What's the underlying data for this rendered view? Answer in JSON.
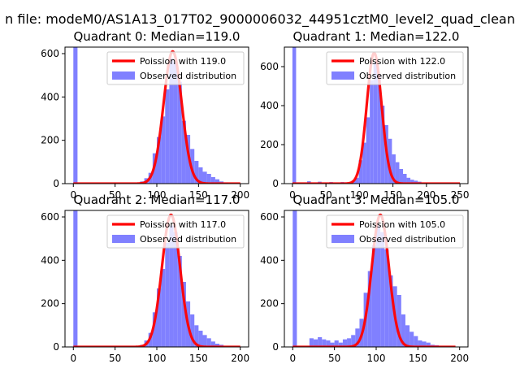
{
  "suptitle": "n file: modeM0/AS1A13_017T02_9000006032_44951cztM0_level2_quad_clean",
  "colors": {
    "fit_line": "#ff0000",
    "histogram": "#8080ff",
    "axes": "#000000",
    "background": "#ffffff"
  },
  "chart_data": [
    {
      "type": "bar",
      "title": "Quadrant 0: Median=119.0",
      "xlabel": "",
      "ylabel": "",
      "xlim": [
        -10,
        210
      ],
      "ylim": [
        0,
        630
      ],
      "xticks": [
        0,
        50,
        100,
        150,
        200
      ],
      "yticks": [
        0,
        200,
        400,
        600
      ],
      "grid": false,
      "legend_position": "top-right",
      "bin_width": 5,
      "series": [
        {
          "name": "Poission with 119.0",
          "kind": "line",
          "lambda": 119.0,
          "x_range": [
            0,
            200
          ],
          "peak": 610
        },
        {
          "name": "Observed distribution",
          "kind": "histogram",
          "bins": [
            {
              "x": 0,
              "count": 640
            },
            {
              "x": 80,
              "count": 10
            },
            {
              "x": 85,
              "count": 25
            },
            {
              "x": 90,
              "count": 50
            },
            {
              "x": 95,
              "count": 140
            },
            {
              "x": 100,
              "count": 215
            },
            {
              "x": 105,
              "count": 310
            },
            {
              "x": 110,
              "count": 435
            },
            {
              "x": 115,
              "count": 580
            },
            {
              "x": 120,
              "count": 560
            },
            {
              "x": 125,
              "count": 470
            },
            {
              "x": 130,
              "count": 290
            },
            {
              "x": 135,
              "count": 225
            },
            {
              "x": 140,
              "count": 160
            },
            {
              "x": 145,
              "count": 105
            },
            {
              "x": 150,
              "count": 75
            },
            {
              "x": 155,
              "count": 55
            },
            {
              "x": 160,
              "count": 45
            },
            {
              "x": 165,
              "count": 30
            },
            {
              "x": 170,
              "count": 20
            },
            {
              "x": 175,
              "count": 10
            },
            {
              "x": 180,
              "count": 5
            }
          ]
        }
      ]
    },
    {
      "type": "bar",
      "title": "Quadrant 1: Median=122.0",
      "xlabel": "",
      "ylabel": "",
      "xlim": [
        -12,
        262
      ],
      "ylim": [
        0,
        700
      ],
      "xticks": [
        0,
        50,
        100,
        150,
        200,
        250
      ],
      "yticks": [
        0,
        200,
        400,
        600
      ],
      "grid": false,
      "legend_position": "top-right",
      "bin_width": 5.5,
      "series": [
        {
          "name": "Poission with 122.0",
          "kind": "line",
          "lambda": 122.0,
          "x_range": [
            0,
            250
          ],
          "peak": 670
        },
        {
          "name": "Observed distribution",
          "kind": "histogram",
          "bins": [
            {
              "x": 0,
              "count": 700
            },
            {
              "x": 22,
              "count": 12
            },
            {
              "x": 38,
              "count": 10
            },
            {
              "x": 55,
              "count": 8
            },
            {
              "x": 72,
              "count": 8
            },
            {
              "x": 88,
              "count": 15
            },
            {
              "x": 93.5,
              "count": 30
            },
            {
              "x": 99,
              "count": 120
            },
            {
              "x": 104.5,
              "count": 210
            },
            {
              "x": 110,
              "count": 340
            },
            {
              "x": 115.5,
              "count": 530
            },
            {
              "x": 121,
              "count": 620
            },
            {
              "x": 126.5,
              "count": 560
            },
            {
              "x": 132,
              "count": 400
            },
            {
              "x": 137.5,
              "count": 300
            },
            {
              "x": 143,
              "count": 230
            },
            {
              "x": 148.5,
              "count": 150
            },
            {
              "x": 154,
              "count": 110
            },
            {
              "x": 159.5,
              "count": 75
            },
            {
              "x": 165,
              "count": 50
            },
            {
              "x": 170.5,
              "count": 30
            },
            {
              "x": 176,
              "count": 20
            },
            {
              "x": 181.5,
              "count": 15
            },
            {
              "x": 187,
              "count": 10
            }
          ]
        }
      ]
    },
    {
      "type": "bar",
      "title": "Quadrant 2: Median=117.0",
      "xlabel": "",
      "ylabel": "",
      "xlim": [
        -10,
        210
      ],
      "ylim": [
        0,
        630
      ],
      "xticks": [
        0,
        50,
        100,
        150,
        200
      ],
      "yticks": [
        0,
        200,
        400,
        600
      ],
      "grid": false,
      "legend_position": "top-right",
      "bin_width": 5,
      "series": [
        {
          "name": "Poission with 117.0",
          "kind": "line",
          "lambda": 117.0,
          "x_range": [
            0,
            200
          ],
          "peak": 610
        },
        {
          "name": "Observed distribution",
          "kind": "histogram",
          "bins": [
            {
              "x": 0,
              "count": 640
            },
            {
              "x": 80,
              "count": 10
            },
            {
              "x": 85,
              "count": 30
            },
            {
              "x": 90,
              "count": 65
            },
            {
              "x": 95,
              "count": 160
            },
            {
              "x": 100,
              "count": 270
            },
            {
              "x": 105,
              "count": 360
            },
            {
              "x": 110,
              "count": 480
            },
            {
              "x": 115,
              "count": 560
            },
            {
              "x": 120,
              "count": 530
            },
            {
              "x": 125,
              "count": 420
            },
            {
              "x": 130,
              "count": 300
            },
            {
              "x": 135,
              "count": 210
            },
            {
              "x": 140,
              "count": 150
            },
            {
              "x": 145,
              "count": 100
            },
            {
              "x": 150,
              "count": 75
            },
            {
              "x": 155,
              "count": 55
            },
            {
              "x": 160,
              "count": 40
            },
            {
              "x": 165,
              "count": 25
            },
            {
              "x": 170,
              "count": 15
            },
            {
              "x": 175,
              "count": 10
            }
          ]
        }
      ]
    },
    {
      "type": "bar",
      "title": "Quadrant 3: Median=105.0",
      "xlabel": "",
      "ylabel": "",
      "xlim": [
        -10,
        210
      ],
      "ylim": [
        0,
        630
      ],
      "xticks": [
        0,
        50,
        100,
        150,
        200
      ],
      "yticks": [
        0,
        200,
        400,
        600
      ],
      "grid": false,
      "legend_position": "top-right",
      "bin_width": 5,
      "series": [
        {
          "name": "Poission with 105.0",
          "kind": "line",
          "lambda": 105.0,
          "x_range": [
            0,
            195
          ],
          "peak": 610
        },
        {
          "name": "Observed distribution",
          "kind": "histogram",
          "bins": [
            {
              "x": 0,
              "count": 640
            },
            {
              "x": 20,
              "count": 40
            },
            {
              "x": 25,
              "count": 35
            },
            {
              "x": 30,
              "count": 45
            },
            {
              "x": 35,
              "count": 35
            },
            {
              "x": 40,
              "count": 30
            },
            {
              "x": 45,
              "count": 20
            },
            {
              "x": 50,
              "count": 30
            },
            {
              "x": 55,
              "count": 20
            },
            {
              "x": 60,
              "count": 35
            },
            {
              "x": 65,
              "count": 40
            },
            {
              "x": 70,
              "count": 55
            },
            {
              "x": 75,
              "count": 85
            },
            {
              "x": 80,
              "count": 130
            },
            {
              "x": 85,
              "count": 250
            },
            {
              "x": 90,
              "count": 350
            },
            {
              "x": 95,
              "count": 470
            },
            {
              "x": 100,
              "count": 560
            },
            {
              "x": 105,
              "count": 530
            },
            {
              "x": 110,
              "count": 450
            },
            {
              "x": 115,
              "count": 330
            },
            {
              "x": 120,
              "count": 280
            },
            {
              "x": 125,
              "count": 240
            },
            {
              "x": 130,
              "count": 150
            },
            {
              "x": 135,
              "count": 100
            },
            {
              "x": 140,
              "count": 70
            },
            {
              "x": 145,
              "count": 50
            },
            {
              "x": 150,
              "count": 30
            },
            {
              "x": 155,
              "count": 25
            },
            {
              "x": 160,
              "count": 20
            },
            {
              "x": 165,
              "count": 10
            },
            {
              "x": 170,
              "count": 8
            }
          ]
        }
      ]
    }
  ]
}
